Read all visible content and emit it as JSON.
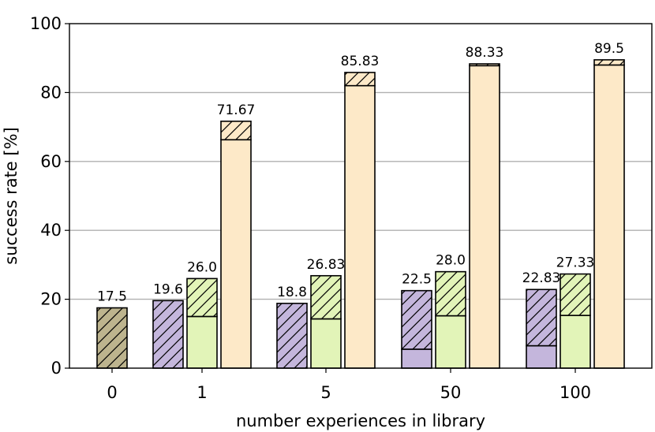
{
  "chart_data": {
    "type": "bar",
    "categories": [
      "0",
      "1",
      "5",
      "50",
      "100"
    ],
    "xlabel": "number experiences in library",
    "ylabel": "success rate [%]",
    "ylim": [
      0,
      100
    ],
    "yticks": [
      0,
      20,
      40,
      60,
      80,
      100
    ],
    "grid": true,
    "stacked": true,
    "segment_note": "lower solid segment + upper hatched segment; label is the total",
    "series": [
      {
        "key": "baseline",
        "color": "#bdb48e",
        "groups": [
          0
        ],
        "solid": [
          0
        ],
        "total": [
          17.5
        ],
        "labels": [
          "17.5"
        ]
      },
      {
        "key": "purple",
        "color": "#c4b6dc",
        "groups": [
          1,
          2,
          3,
          4
        ],
        "solid": [
          0,
          0,
          5.5,
          6.5
        ],
        "total": [
          19.6,
          18.8,
          22.5,
          22.83
        ],
        "labels": [
          "19.6",
          "18.8",
          "22.5",
          "22.83"
        ]
      },
      {
        "key": "green",
        "color": "#e2f4b8",
        "groups": [
          1,
          2,
          3,
          4
        ],
        "solid": [
          15.0,
          14.3,
          15.2,
          15.3
        ],
        "total": [
          26.0,
          26.83,
          28.0,
          27.33
        ],
        "labels": [
          "26.0",
          "26.83",
          "28.0",
          "27.33"
        ]
      },
      {
        "key": "orange",
        "color": "#fde9c8",
        "groups": [
          1,
          2,
          3,
          4
        ],
        "solid": [
          66.3,
          82.0,
          87.8,
          88.0
        ],
        "total": [
          71.67,
          85.83,
          88.33,
          89.5
        ],
        "labels": [
          "71.67",
          "85.83",
          "88.33",
          "89.5"
        ]
      }
    ]
  }
}
